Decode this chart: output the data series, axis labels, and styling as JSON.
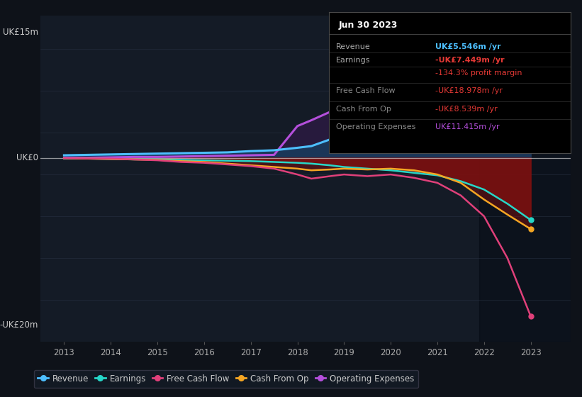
{
  "bg_color": "#0e1219",
  "plot_bg_color": "#141b26",
  "ylabel_top": "UK£15m",
  "ylabel_bottom": "-UK£20m",
  "ylabel_zero": "UK£0",
  "years": [
    2013,
    2013.5,
    2014,
    2014.5,
    2015,
    2015.5,
    2016,
    2016.5,
    2017,
    2017.5,
    2018,
    2018.3,
    2018.7,
    2019,
    2019.5,
    2020,
    2020.5,
    2021,
    2021.5,
    2022,
    2022.5,
    2023
  ],
  "revenue": [
    0.3,
    0.35,
    0.4,
    0.45,
    0.5,
    0.55,
    0.6,
    0.65,
    0.8,
    0.9,
    1.2,
    1.4,
    2.2,
    3.5,
    3.8,
    4.2,
    4.5,
    4.8,
    5.0,
    5.2,
    5.35,
    5.546
  ],
  "earnings": [
    -0.1,
    -0.1,
    -0.15,
    -0.2,
    -0.2,
    -0.25,
    -0.3,
    -0.35,
    -0.4,
    -0.5,
    -0.6,
    -0.7,
    -0.9,
    -1.1,
    -1.3,
    -1.5,
    -1.8,
    -2.1,
    -2.8,
    -3.8,
    -5.5,
    -7.449
  ],
  "free_cash_flow": [
    -0.05,
    -0.08,
    -0.1,
    -0.2,
    -0.3,
    -0.5,
    -0.6,
    -0.8,
    -1.0,
    -1.3,
    -2.0,
    -2.5,
    -2.2,
    -2.0,
    -2.2,
    -2.0,
    -2.4,
    -3.0,
    -4.5,
    -7.0,
    -12.0,
    -18.978
  ],
  "cash_from_op": [
    -0.05,
    -0.1,
    -0.15,
    -0.2,
    -0.25,
    -0.4,
    -0.5,
    -0.7,
    -0.9,
    -1.1,
    -1.3,
    -1.5,
    -1.4,
    -1.3,
    -1.4,
    -1.3,
    -1.5,
    -2.0,
    -3.0,
    -5.0,
    -6.8,
    -8.539
  ],
  "operating_expenses": [
    0.0,
    0.0,
    0.05,
    0.1,
    0.1,
    0.15,
    0.2,
    0.25,
    0.3,
    0.35,
    3.8,
    4.5,
    5.5,
    6.5,
    6.8,
    7.0,
    7.2,
    7.5,
    8.0,
    8.8,
    9.8,
    11.415
  ],
  "revenue_color": "#4dbfff",
  "earnings_color": "#26d7c8",
  "free_cash_flow_color": "#e0407a",
  "cash_from_op_color": "#f5a623",
  "operating_expenses_color": "#b44fdb",
  "fill_above_blue": "#1a3a5c",
  "fill_above_purple": "#2a1a40",
  "fill_below_red": "#7a1010",
  "info_box": {
    "title": "Jun 30 2023",
    "rows": [
      {
        "label": "Revenue",
        "value": "UK£5.546m /yr",
        "value_color": "#4dbfff",
        "label_color": "#aaaaaa"
      },
      {
        "label": "Earnings",
        "value": "-UK£7.449m /yr",
        "value_color": "#e53935",
        "label_color": "#aaaaaa"
      },
      {
        "label": "",
        "value": "-134.3% profit margin",
        "value_color": "#e53935",
        "label_color": "#aaaaaa"
      },
      {
        "label": "Free Cash Flow",
        "value": "-UK£18.978m /yr",
        "value_color": "#e53935",
        "label_color": "#888888"
      },
      {
        "label": "Cash From Op",
        "value": "-UK£8.539m /yr",
        "value_color": "#e53935",
        "label_color": "#888888"
      },
      {
        "label": "Operating Expenses",
        "value": "UK£11.415m /yr",
        "value_color": "#b44fdb",
        "label_color": "#888888"
      }
    ]
  },
  "ylim": [
    -22,
    17
  ],
  "xlim_start": 2012.5,
  "xlim_end": 2023.85,
  "legend_items": [
    {
      "label": "Revenue",
      "color": "#4dbfff"
    },
    {
      "label": "Earnings",
      "color": "#26d7c8"
    },
    {
      "label": "Free Cash Flow",
      "color": "#e0407a"
    },
    {
      "label": "Cash From Op",
      "color": "#f5a623"
    },
    {
      "label": "Operating Expenses",
      "color": "#b44fdb"
    }
  ]
}
